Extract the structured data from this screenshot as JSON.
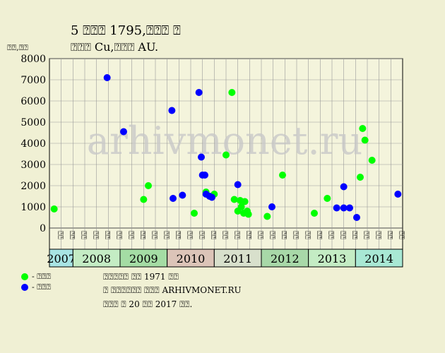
{
  "header": {
    "title_line1": "5 ⍰⍰⍰ 1795,⍰⍰⍰ ⍰",
    "title_line2": "⍰⍰⍰ Cu,⍰⍰⍰ AU."
  },
  "watermark": "arhivmonet.ru",
  "legend": {
    "green_label": "- ⍰⍰⍰",
    "blue_label": "- ⍰⍰⍰"
  },
  "notes": [
    "⍰⍰⍰⍰⍰ ⍰⍰ 1971 ⍰⍰",
    "⍰ ⍰⍰⍰⍰⍰⍰ ⍰⍰⍰ ARHIVMONET.RU",
    "⍰⍰⍰ ⍰ 20 ⍰⍰ 2017 ⍰⍰."
  ],
  "colors": {
    "background": "#f0f0d4",
    "plot_background": "#f4f4dc",
    "green": "#00ff00",
    "blue": "#0000ff"
  },
  "chart_data": {
    "type": "scatter",
    "ylabel": "⍰⍰,⍰⍰",
    "ylim": [
      0,
      8000
    ],
    "y_ticks": [
      0,
      1000,
      2000,
      3000,
      4000,
      5000,
      6000,
      7000,
      8000
    ],
    "grid": true,
    "x_columns": [
      "⍰⍰",
      "⍰⍰",
      "⍰⍰",
      "⍰⍰",
      "⍰⍰",
      "⍰⍰",
      "⍰⍰",
      "⍰⍰",
      "⍰⍰",
      "⍰⍰",
      "⍰⍰",
      "⍰⍰",
      "⍰⍰",
      "⍰⍰",
      "⍰⍰",
      "⍰⍰",
      "⍰⍰",
      "⍰⍰",
      "⍰⍰",
      "⍰⍰",
      "⍰⍰",
      "⍰⍰",
      "⍰⍰",
      "⍰⍰",
      "⍰⍰",
      "⍰⍰",
      "⍰⍰",
      "⍰⍰",
      "⍰⍰",
      "⍰⍰"
    ],
    "years": [
      {
        "label": "2007",
        "start": 0,
        "span": 2,
        "color": "#a8e4e4"
      },
      {
        "label": "2008",
        "start": 2,
        "span": 4,
        "color": "#c4ecc4"
      },
      {
        "label": "2009",
        "start": 6,
        "span": 4,
        "color": "#a4dca4"
      },
      {
        "label": "2010",
        "start": 10,
        "span": 4,
        "color": "#dcc4b8"
      },
      {
        "label": "2011",
        "start": 14,
        "span": 4,
        "color": "#d8e0cc"
      },
      {
        "label": "2012",
        "start": 18,
        "span": 4,
        "color": "#a8d8a8"
      },
      {
        "label": "2013",
        "start": 22,
        "span": 4,
        "color": "#c4ecc4"
      },
      {
        "label": "2014",
        "start": 26,
        "span": 4,
        "color": "#a8e8d4"
      }
    ],
    "series": [
      {
        "key": "green",
        "points": [
          {
            "x": 0.4,
            "y": 900
          },
          {
            "x": 8.0,
            "y": 1350
          },
          {
            "x": 8.4,
            "y": 2000
          },
          {
            "x": 12.3,
            "y": 700
          },
          {
            "x": 13.3,
            "y": 1700
          },
          {
            "x": 14.0,
            "y": 1600
          },
          {
            "x": 15.0,
            "y": 3450
          },
          {
            "x": 15.5,
            "y": 6400
          },
          {
            "x": 15.7,
            "y": 1350
          },
          {
            "x": 16.0,
            "y": 800
          },
          {
            "x": 16.2,
            "y": 1300
          },
          {
            "x": 16.3,
            "y": 1000
          },
          {
            "x": 16.5,
            "y": 700
          },
          {
            "x": 16.6,
            "y": 1250
          },
          {
            "x": 16.8,
            "y": 800
          },
          {
            "x": 16.9,
            "y": 650
          },
          {
            "x": 18.5,
            "y": 550
          },
          {
            "x": 19.8,
            "y": 2500
          },
          {
            "x": 22.5,
            "y": 700
          },
          {
            "x": 23.6,
            "y": 1400
          },
          {
            "x": 26.4,
            "y": 2400
          },
          {
            "x": 26.6,
            "y": 4700
          },
          {
            "x": 26.8,
            "y": 4150
          },
          {
            "x": 27.4,
            "y": 3200
          }
        ]
      },
      {
        "key": "blue",
        "points": [
          {
            "x": 4.9,
            "y": 7100
          },
          {
            "x": 6.3,
            "y": 4550
          },
          {
            "x": 10.4,
            "y": 5550
          },
          {
            "x": 10.5,
            "y": 1400
          },
          {
            "x": 11.3,
            "y": 1550
          },
          {
            "x": 12.7,
            "y": 6400
          },
          {
            "x": 12.9,
            "y": 3350
          },
          {
            "x": 13.0,
            "y": 2500
          },
          {
            "x": 13.2,
            "y": 2500
          },
          {
            "x": 13.3,
            "y": 1600
          },
          {
            "x": 13.6,
            "y": 1500
          },
          {
            "x": 13.8,
            "y": 1450
          },
          {
            "x": 16.0,
            "y": 2050
          },
          {
            "x": 18.9,
            "y": 1000
          },
          {
            "x": 24.4,
            "y": 950
          },
          {
            "x": 25.0,
            "y": 1950
          },
          {
            "x": 25.0,
            "y": 950
          },
          {
            "x": 25.5,
            "y": 950
          },
          {
            "x": 26.1,
            "y": 500
          },
          {
            "x": 29.6,
            "y": 1600
          }
        ]
      }
    ]
  }
}
